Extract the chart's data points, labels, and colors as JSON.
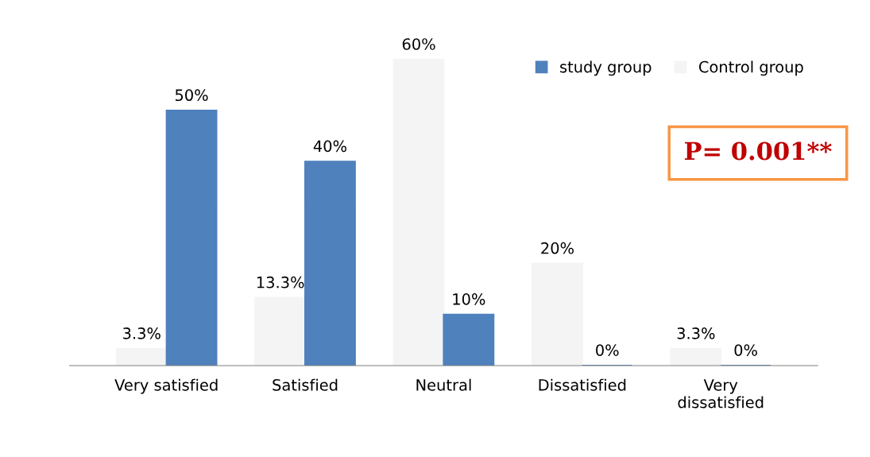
{
  "chart_data": {
    "type": "bar",
    "categories": [
      "Very satisfied",
      "Satisfied",
      "Neutral",
      "Dissatisfied",
      "Very\ndissatisfied"
    ],
    "series": [
      {
        "name": "Control group",
        "color": "#f4f4f4",
        "values": [
          3.3,
          13.3,
          60,
          20,
          3.3
        ],
        "value_labels": [
          "3.3%",
          "13.3%",
          "60%",
          "20%",
          "3.3%"
        ]
      },
      {
        "name": "study group",
        "color": "#4f81bd",
        "values": [
          50,
          40,
          10,
          0,
          0
        ],
        "value_labels": [
          "50%",
          "40%",
          "10%",
          "0%",
          "0%"
        ]
      }
    ],
    "annotations": [
      "P= 0.001**"
    ],
    "legend": "top right",
    "grid": false
  }
}
